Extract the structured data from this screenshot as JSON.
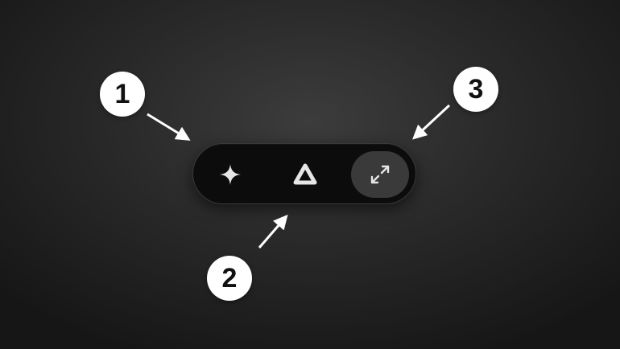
{
  "toolbar": {
    "buttons": [
      {
        "icon": "sparkle-icon",
        "selected": false
      },
      {
        "icon": "rounded-triangle-icon",
        "selected": false
      },
      {
        "icon": "expand-arrows-icon",
        "selected": true
      }
    ]
  },
  "callouts": [
    {
      "label": "1"
    },
    {
      "label": "2"
    },
    {
      "label": "3"
    }
  ],
  "colors": {
    "background": "#2a2a2a",
    "toolbar": "#0c0c0c",
    "selected_button": "#3a3a3a",
    "icon": "#e6e6e6",
    "badge": "#ffffff",
    "badge_text": "#111111",
    "arrow": "#ffffff"
  }
}
